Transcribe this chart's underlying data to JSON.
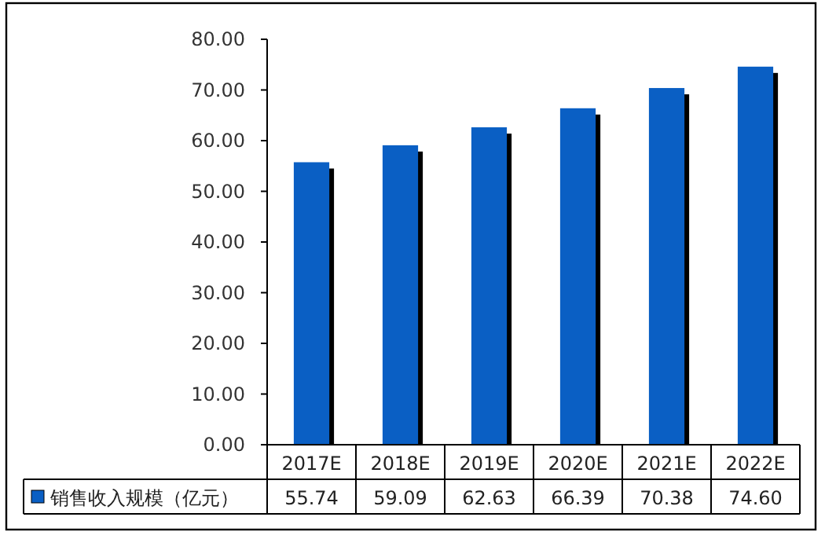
{
  "chart_data": {
    "type": "bar",
    "categories": [
      "2017E",
      "2018E",
      "2019E",
      "2020E",
      "2021E",
      "2022E"
    ],
    "series": [
      {
        "name": "销售收入规模（亿元）",
        "color": "#0a5fc4",
        "values": [
          55.74,
          59.09,
          62.63,
          66.39,
          70.38,
          74.6
        ],
        "value_labels": [
          "55.74",
          "59.09",
          "62.63",
          "66.39",
          "70.38",
          "74.60"
        ]
      }
    ],
    "ylim": [
      0,
      80
    ],
    "yticks": [
      {
        "value": 0,
        "label": "0.00"
      },
      {
        "value": 10,
        "label": "10.00"
      },
      {
        "value": 20,
        "label": "20.00"
      },
      {
        "value": 30,
        "label": "30.00"
      },
      {
        "value": 40,
        "label": "40.00"
      },
      {
        "value": 50,
        "label": "50.00"
      },
      {
        "value": 60,
        "label": "60.00"
      },
      {
        "value": 70,
        "label": "70.00"
      },
      {
        "value": 80,
        "label": "80.00"
      }
    ],
    "legend": "bottom"
  }
}
